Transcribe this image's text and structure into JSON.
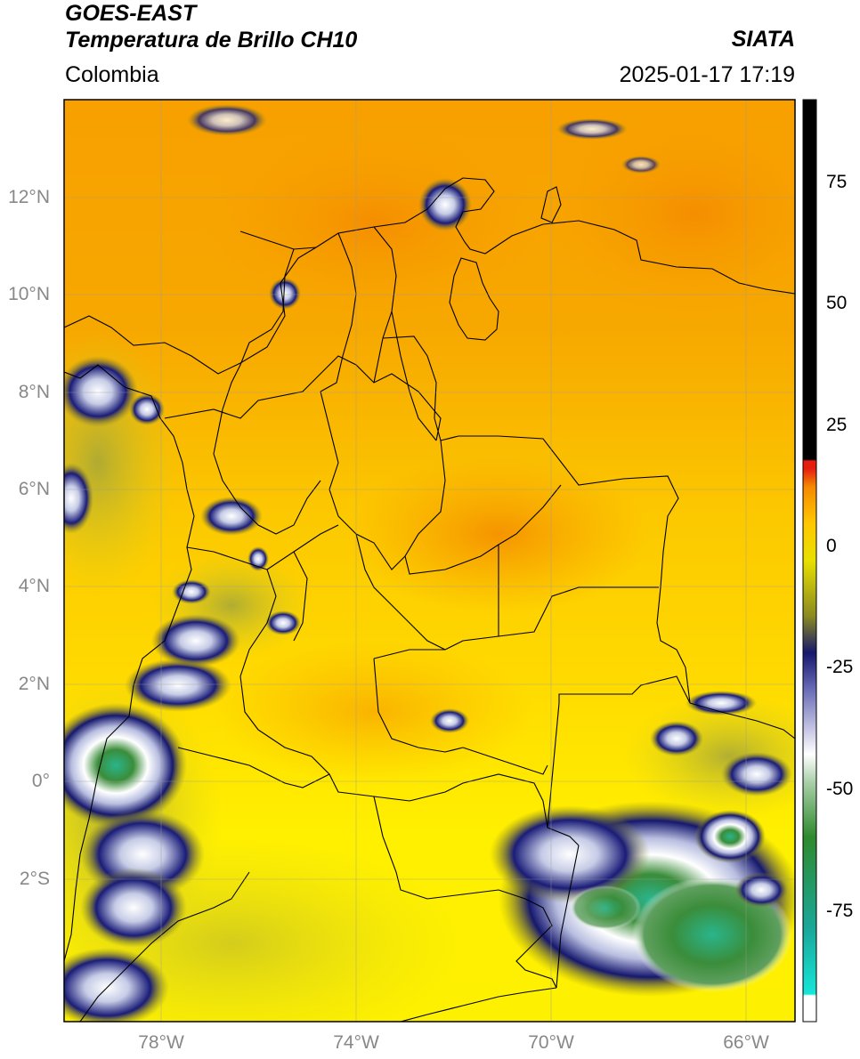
{
  "header": {
    "satellite": "GOES-EAST",
    "product": "Temperatura de Brillo CH10",
    "region": "Colombia",
    "brand": "SIATA",
    "datetime": "2025-01-17 17:19"
  },
  "map": {
    "lat_range": [
      -4.9,
      14.0
    ],
    "lon_range": [
      -80.0,
      -65.0
    ],
    "lat_ticks": [
      {
        "value": 12,
        "label": "12°N"
      },
      {
        "value": 10,
        "label": "10°N"
      },
      {
        "value": 8,
        "label": "8°N"
      },
      {
        "value": 6,
        "label": "6°N"
      },
      {
        "value": 4,
        "label": "4°N"
      },
      {
        "value": 2,
        "label": "2°N"
      },
      {
        "value": 0,
        "label": "0°"
      },
      {
        "value": -2,
        "label": "2°S"
      }
    ],
    "lon_ticks": [
      {
        "value": -78,
        "label": "78°W"
      },
      {
        "value": -74,
        "label": "74°W"
      },
      {
        "value": -70,
        "label": "70°W"
      },
      {
        "value": -66,
        "label": "66°W"
      }
    ]
  },
  "colorbar": {
    "range": [
      -100,
      90
    ],
    "ticks": [
      {
        "value": 75,
        "label": "75"
      },
      {
        "value": 50,
        "label": "50"
      },
      {
        "value": 25,
        "label": "25"
      },
      {
        "value": 0,
        "label": "0"
      },
      {
        "value": -25,
        "label": "-25"
      },
      {
        "value": -50,
        "label": "-50"
      },
      {
        "value": -75,
        "label": "-75"
      }
    ],
    "colors": {
      "black": "#000000",
      "red": "#e51e10",
      "orange": "#f58a00",
      "yellow": "#fff200",
      "olive": "#8a8a20",
      "navy": "#16186e",
      "white": "#ffffff",
      "green": "#2e8a2e",
      "cyan": "#16e6d8"
    }
  }
}
